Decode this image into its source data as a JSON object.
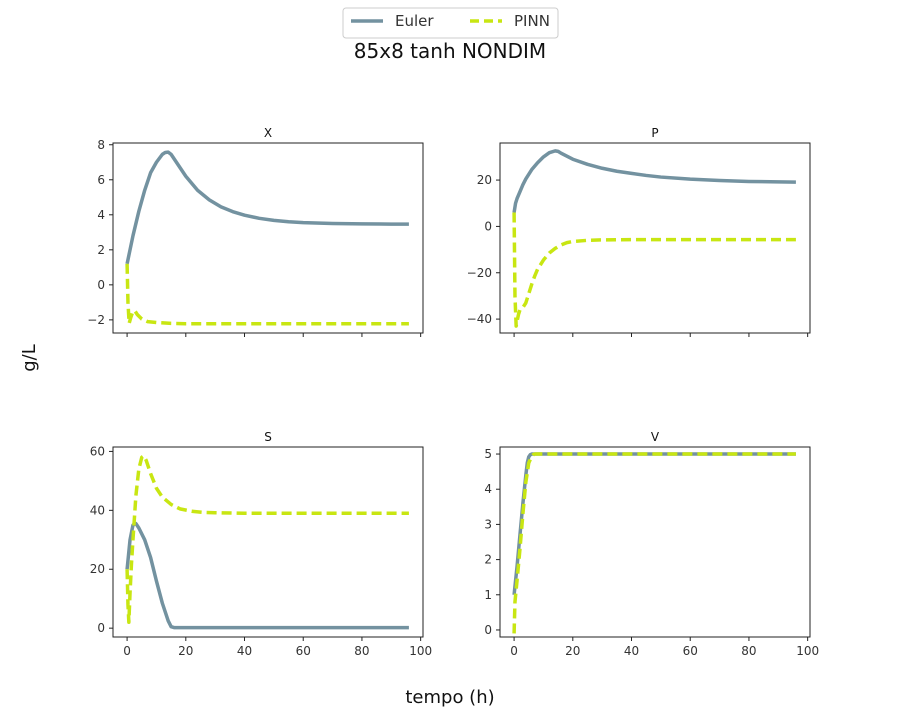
{
  "figure": {
    "title": "85x8 tanh NONDIM",
    "xlabel": "tempo (h)",
    "ylabel": "g/L"
  },
  "legend": {
    "placement": "top-center",
    "entries": [
      {
        "name": "Euler",
        "color": "#7392a0",
        "style": "solid"
      },
      {
        "name": "PINN",
        "color": "#c8e612",
        "style": "dashed"
      }
    ]
  },
  "chart_data": [
    {
      "type": "line",
      "title": "X",
      "xlim": [
        -4.8,
        100.8
      ],
      "ylim": [
        -2.75,
        8.1
      ],
      "xticks": [
        0,
        20,
        40,
        60,
        80,
        100
      ],
      "yticks": [
        -2,
        0,
        2,
        4,
        6,
        8
      ],
      "show_xtick_labels": false,
      "series": [
        {
          "name": "Euler",
          "x": [
            0,
            1,
            2,
            4,
            6,
            8,
            10,
            12,
            13,
            14,
            15,
            16,
            18,
            20,
            24,
            28,
            32,
            36,
            40,
            45,
            50,
            55,
            60,
            70,
            80,
            90,
            96
          ],
          "y": [
            1.2,
            2.0,
            2.8,
            4.2,
            5.4,
            6.4,
            7.0,
            7.45,
            7.56,
            7.58,
            7.45,
            7.2,
            6.7,
            6.2,
            5.4,
            4.85,
            4.45,
            4.18,
            3.98,
            3.8,
            3.68,
            3.6,
            3.55,
            3.5,
            3.48,
            3.47,
            3.47
          ]
        },
        {
          "name": "PINN",
          "x": [
            0,
            0.3,
            0.7,
            1.2,
            2,
            2.7,
            3.5,
            5,
            7,
            10,
            15,
            20,
            30,
            50,
            70,
            96
          ],
          "y": [
            1.2,
            -1.0,
            -2.2,
            -1.9,
            -1.5,
            -1.5,
            -1.7,
            -1.95,
            -2.1,
            -2.15,
            -2.2,
            -2.22,
            -2.22,
            -2.22,
            -2.22,
            -2.22
          ]
        }
      ]
    },
    {
      "type": "line",
      "title": "P",
      "xlim": [
        -4.8,
        100.8
      ],
      "ylim": [
        -46,
        36
      ],
      "xticks": [
        0,
        20,
        40,
        60,
        80,
        100
      ],
      "yticks": [
        -40,
        -20,
        0,
        20
      ],
      "show_xtick_labels": false,
      "series": [
        {
          "name": "Euler",
          "x": [
            0,
            0.5,
            1,
            2,
            3,
            4,
            6,
            8,
            10,
            12,
            14,
            15,
            16,
            18,
            20,
            25,
            30,
            35,
            40,
            45,
            50,
            60,
            70,
            80,
            90,
            96
          ],
          "y": [
            6,
            10,
            12,
            15,
            18,
            20.5,
            24.5,
            27.5,
            30,
            31.8,
            32.6,
            32.4,
            31.6,
            30.3,
            29,
            26.8,
            25.1,
            23.8,
            22.9,
            22,
            21.3,
            20.4,
            19.8,
            19.4,
            19.2,
            19.1
          ]
        },
        {
          "name": "PINN",
          "x": [
            0,
            0.3,
            0.7,
            1,
            1.5,
            2,
            3,
            4,
            5,
            6,
            7,
            8,
            10,
            12,
            14,
            16,
            18,
            20,
            25,
            30,
            40,
            50,
            60,
            80,
            96
          ],
          "y": [
            6,
            -30,
            -43,
            -41,
            -38,
            -36,
            -35,
            -33,
            -29,
            -25,
            -21.5,
            -18.5,
            -14.5,
            -11.5,
            -9.5,
            -8,
            -7,
            -6.5,
            -6,
            -5.8,
            -5.7,
            -5.7,
            -5.7,
            -5.7,
            -5.7
          ]
        }
      ]
    },
    {
      "type": "line",
      "title": "S",
      "xlim": [
        -4.8,
        100.8
      ],
      "ylim": [
        -3,
        61.5
      ],
      "xticks": [
        0,
        20,
        40,
        60,
        80,
        100
      ],
      "yticks": [
        0,
        20,
        40,
        60
      ],
      "show_xtick_labels": true,
      "series": [
        {
          "name": "Euler",
          "x": [
            0,
            0.5,
            1,
            2,
            3,
            4,
            6,
            8,
            10,
            12,
            14,
            15,
            16,
            18,
            20,
            30,
            40,
            60,
            80,
            96
          ],
          "y": [
            20,
            25,
            30,
            35,
            35.5,
            34,
            30,
            24,
            16,
            8.5,
            2.5,
            0.5,
            0.2,
            0.2,
            0.2,
            0.2,
            0.2,
            0.2,
            0.2,
            0.2
          ]
        },
        {
          "name": "PINN",
          "x": [
            0,
            0.3,
            0.6,
            1,
            1.5,
            2,
            3,
            4,
            5,
            5.7,
            6.5,
            8,
            10,
            12,
            15,
            18,
            22,
            26,
            30,
            40,
            60,
            80,
            96
          ],
          "y": [
            20,
            8,
            2,
            12,
            22,
            30,
            45,
            54,
            58,
            58.5,
            57,
            52.5,
            47.5,
            44.5,
            42,
            40.5,
            39.7,
            39.3,
            39.2,
            39,
            39,
            39,
            39
          ]
        }
      ]
    },
    {
      "type": "line",
      "title": "V",
      "xlim": [
        -4.8,
        100.8
      ],
      "ylim": [
        -0.2,
        5.2
      ],
      "xticks": [
        0,
        20,
        40,
        60,
        80,
        100
      ],
      "yticks": [
        0,
        1,
        2,
        3,
        4,
        5
      ],
      "show_xtick_labels": true,
      "series": [
        {
          "name": "Euler",
          "x": [
            0,
            1,
            2,
            3,
            4,
            4.5,
            5,
            5.5,
            6,
            7,
            10,
            20,
            40,
            60,
            80,
            96
          ],
          "y": [
            1,
            1.8,
            2.7,
            3.6,
            4.4,
            4.75,
            4.92,
            4.98,
            5,
            5,
            5,
            5,
            5,
            5,
            5,
            5
          ]
        },
        {
          "name": "PINN",
          "x": [
            0,
            0.3,
            1,
            2,
            3,
            4,
            5,
            6,
            6.5,
            7,
            8,
            10,
            20,
            40,
            60,
            80,
            96
          ],
          "y": [
            -0.1,
            0.8,
            1.4,
            2.3,
            3.3,
            4.2,
            4.75,
            4.93,
            4.98,
            5,
            5,
            5,
            5,
            5,
            5,
            5,
            5
          ]
        }
      ]
    }
  ]
}
